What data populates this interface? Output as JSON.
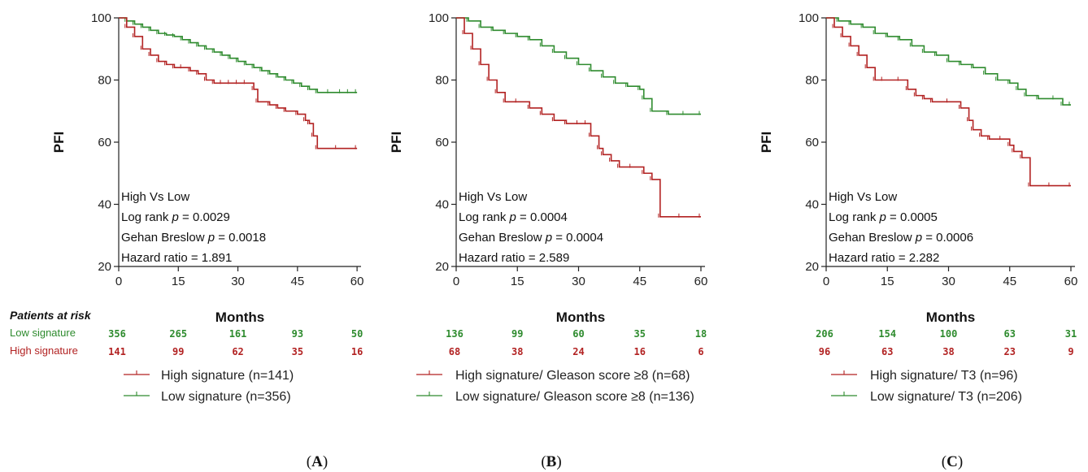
{
  "colors": {
    "low": "#2e8b2e",
    "high": "#b22222",
    "axis": "#222222"
  },
  "patients_at_risk_header": "Patients at risk",
  "risk_row_labels": {
    "low": "Low signature",
    "high": "High signature"
  },
  "chart_data": [
    {
      "type": "line",
      "panel_label": "(A)",
      "ylabel": "PFI",
      "xlabel": "Months",
      "xlim": [
        0,
        61
      ],
      "ylim": [
        20,
        100
      ],
      "xticks": [
        "0",
        "15",
        "30",
        "45",
        "60"
      ],
      "yticks": [
        "20",
        "40",
        "60",
        "80",
        "100"
      ],
      "stats_lines": [
        "High Vs Low",
        "Log rank p = 0.0029",
        "Gehan Breslow p = 0.0018",
        "Hazard ratio = 1.891"
      ],
      "series": [
        {
          "key": "low",
          "name": "Low signature (n=356)",
          "x": [
            0,
            2,
            4,
            6,
            8,
            10,
            12,
            14,
            16,
            18,
            20,
            22,
            24,
            26,
            28,
            30,
            32,
            34,
            36,
            38,
            40,
            42,
            44,
            46,
            48,
            50,
            53,
            56,
            58,
            60
          ],
          "y": [
            100,
            99,
            98,
            97,
            96,
            95,
            94.5,
            94,
            93,
            92,
            91,
            90,
            89,
            88,
            87,
            86,
            85,
            84,
            83,
            82,
            81,
            80,
            79,
            78,
            77,
            76,
            76,
            76,
            76,
            76
          ]
        },
        {
          "key": "high",
          "name": "High signature (n=141)",
          "x": [
            0,
            2,
            4,
            6,
            8,
            10,
            12,
            14,
            16,
            18,
            20,
            22,
            24,
            26,
            28,
            30,
            32,
            34,
            35,
            38,
            40,
            42,
            45,
            47,
            48,
            49,
            50,
            55,
            60
          ],
          "y": [
            100,
            97,
            94,
            90,
            88,
            86,
            85,
            84,
            84,
            83,
            82,
            80,
            79,
            79,
            79,
            79,
            79,
            77,
            73,
            72,
            71,
            70,
            69,
            67,
            66,
            62,
            58,
            58,
            58
          ]
        }
      ],
      "risk_table": {
        "times": [
          0,
          15,
          30,
          45,
          60
        ],
        "low": [
          "356",
          "265",
          "161",
          "93",
          "50"
        ],
        "high": [
          "141",
          "99",
          "62",
          "35",
          "16"
        ]
      }
    },
    {
      "type": "line",
      "panel_label": "(B)",
      "ylabel": "PFI",
      "xlabel": "Months",
      "xlim": [
        0,
        61
      ],
      "ylim": [
        20,
        100
      ],
      "xticks": [
        "0",
        "15",
        "30",
        "45",
        "60"
      ],
      "yticks": [
        "20",
        "40",
        "60",
        "80",
        "100"
      ],
      "stats_lines": [
        "High Vs Low",
        "Log rank p = 0.0004",
        "Gehan Breslow p = 0.0004",
        "Hazard ratio = 2.589"
      ],
      "series": [
        {
          "key": "low",
          "name": "Low signature/ Gleason score ≥8 (n=136)",
          "x": [
            0,
            3,
            6,
            9,
            12,
            15,
            18,
            21,
            24,
            27,
            30,
            33,
            36,
            39,
            42,
            45,
            46,
            48,
            52,
            56,
            60
          ],
          "y": [
            100,
            99,
            97,
            96,
            95,
            94,
            93,
            91,
            89,
            87,
            85,
            83,
            81,
            79,
            78,
            77,
            74,
            70,
            69,
            69,
            69
          ]
        },
        {
          "key": "high",
          "name": "High signature/ Gleason score ≥8 (n=68)",
          "x": [
            0,
            2,
            4,
            6,
            8,
            10,
            12,
            15,
            18,
            21,
            24,
            27,
            30,
            32,
            33,
            35,
            36,
            38,
            40,
            43,
            46,
            48,
            50,
            55,
            60
          ],
          "y": [
            100,
            95,
            90,
            85,
            80,
            76,
            73,
            73,
            71,
            69,
            67,
            66,
            66,
            66,
            62,
            58,
            56,
            54,
            52,
            52,
            50,
            48,
            36,
            36,
            36
          ]
        }
      ],
      "risk_table": {
        "times": [
          0,
          15,
          30,
          45,
          60
        ],
        "low": [
          "136",
          "99",
          "60",
          "35",
          "18"
        ],
        "high": [
          "68",
          "38",
          "24",
          "16",
          "6"
        ]
      }
    },
    {
      "type": "line",
      "panel_label": "(C)",
      "ylabel": "PFI",
      "xlabel": "Months",
      "xlim": [
        0,
        61
      ],
      "ylim": [
        20,
        100
      ],
      "xticks": [
        "0",
        "15",
        "30",
        "45",
        "60"
      ],
      "yticks": [
        "20",
        "40",
        "60",
        "80",
        "100"
      ],
      "stats_lines": [
        "High Vs Low",
        "Log rank p = 0.0005",
        "Gehan Breslow p = 0.0006",
        "Hazard ratio = 2.282"
      ],
      "series": [
        {
          "key": "low",
          "name": "Low signature/ T3 (n=206)",
          "x": [
            0,
            3,
            6,
            9,
            12,
            15,
            18,
            21,
            24,
            27,
            30,
            33,
            36,
            39,
            42,
            45,
            47,
            49,
            52,
            56,
            58,
            60
          ],
          "y": [
            100,
            99,
            98,
            97,
            95,
            94,
            93,
            91,
            89,
            88,
            86,
            85,
            84,
            82,
            80,
            79,
            77,
            75,
            74,
            74,
            72,
            72
          ]
        },
        {
          "key": "high",
          "name": "High signature/ T3 (n=96)",
          "x": [
            0,
            2,
            4,
            6,
            8,
            10,
            12,
            14,
            18,
            20,
            22,
            24,
            26,
            30,
            33,
            35,
            36,
            38,
            40,
            43,
            45,
            46,
            48,
            50,
            55,
            60
          ],
          "y": [
            100,
            97,
            94,
            91,
            88,
            84,
            80,
            80,
            80,
            77,
            75,
            74,
            73,
            73,
            71,
            67,
            64,
            62,
            61,
            61,
            59,
            57,
            55,
            46,
            46,
            46
          ]
        }
      ],
      "risk_table": {
        "times": [
          0,
          15,
          30,
          45,
          60
        ],
        "low": [
          "206",
          "154",
          "100",
          "63",
          "31"
        ],
        "high": [
          "96",
          "63",
          "38",
          "23",
          "9"
        ]
      }
    }
  ]
}
